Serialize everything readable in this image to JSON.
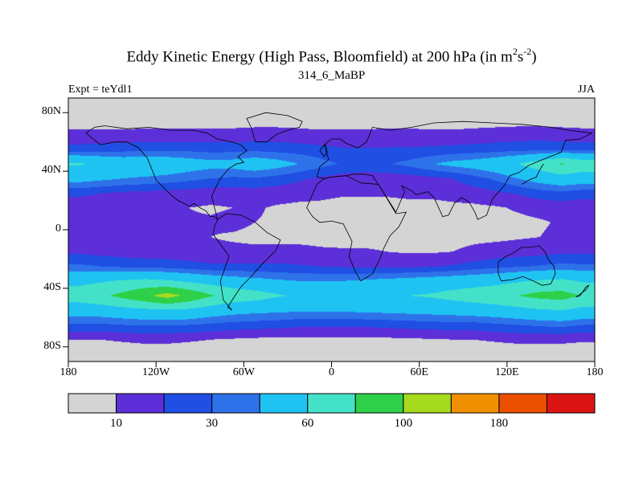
{
  "header": {
    "title_pre": "Eddy Kinetic Energy (High Pass, Bloomfield) at 200 hPa (in m",
    "title_sup1": "2",
    "title_mid": "s",
    "title_sup2": "-2",
    "title_post": ")",
    "subtitle": "314_6_MaBP",
    "experiment": "Expt = teYdl1",
    "season": "JJA"
  },
  "axes": {
    "lat_ticks": [
      {
        "label": "80N",
        "lat": 80
      },
      {
        "label": "40N",
        "lat": 40
      },
      {
        "label": "0",
        "lat": 0
      },
      {
        "label": "40S",
        "lat": -40
      },
      {
        "label": "80S",
        "lat": -80
      }
    ],
    "lon_ticks": [
      {
        "label": "180",
        "lon": -180
      },
      {
        "label": "120W",
        "lon": -120
      },
      {
        "label": "60W",
        "lon": -60
      },
      {
        "label": "0",
        "lon": 0
      },
      {
        "label": "60E",
        "lon": 60
      },
      {
        "label": "120E",
        "lon": 120
      },
      {
        "label": "180",
        "lon": 180
      }
    ]
  },
  "colorbar": {
    "labels": [
      {
        "text": "10",
        "boundary_index": 0
      },
      {
        "text": "30",
        "boundary_index": 2
      },
      {
        "text": "60",
        "boundary_index": 4
      },
      {
        "text": "100",
        "boundary_index": 6
      },
      {
        "text": "180",
        "boundary_index": 8
      }
    ]
  },
  "chart_data": {
    "type": "heatmap",
    "title": "Eddy Kinetic Energy (High Pass, Bloomfield) at 200 hPa (in m2 s-2)",
    "subtitle": "314_6_MaBP",
    "experiment": "teYdl1",
    "season": "JJA",
    "units": "m2 s-2",
    "levels": [
      10,
      20,
      30,
      40,
      60,
      80,
      100,
      140,
      180,
      220
    ],
    "palette": [
      "#d4d4d4",
      "#5c2fd8",
      "#1f4fe3",
      "#2e72ea",
      "#1fc3f2",
      "#43e2c8",
      "#2fd049",
      "#a6da1e",
      "#f09000",
      "#ea4f00",
      "#dc1414"
    ],
    "lon_range": [
      -180,
      180
    ],
    "lat_range": [
      -90,
      90
    ],
    "lon_centers": [
      -172.5,
      -157.5,
      -142.5,
      -127.5,
      -112.5,
      -97.5,
      -82.5,
      -67.5,
      -52.5,
      -37.5,
      -22.5,
      -7.5,
      7.5,
      22.5,
      37.5,
      52.5,
      67.5,
      82.5,
      97.5,
      112.5,
      127.5,
      142.5,
      157.5,
      172.5
    ],
    "lat_centers": [
      85,
      75,
      65,
      55,
      45,
      35,
      25,
      15,
      5,
      -5,
      -15,
      -25,
      -35,
      -45,
      -55,
      -65,
      -75,
      -85
    ],
    "values": [
      [
        5,
        5,
        5,
        5,
        5,
        5,
        5,
        5,
        5,
        5,
        5,
        5,
        5,
        5,
        5,
        5,
        5,
        5,
        5,
        5,
        5,
        5,
        5,
        5
      ],
      [
        6,
        6,
        6,
        6,
        6,
        6,
        6,
        6,
        6,
        6,
        6,
        6,
        6,
        6,
        6,
        6,
        6,
        6,
        6,
        6,
        6,
        6,
        6,
        6
      ],
      [
        12,
        12,
        12,
        13,
        13,
        13,
        13,
        13,
        14,
        14,
        13,
        12,
        12,
        12,
        13,
        13,
        12,
        12,
        13,
        14,
        15,
        15,
        14,
        13
      ],
      [
        24,
        25,
        26,
        27,
        27,
        27,
        26,
        26,
        27,
        26,
        25,
        23,
        21,
        21,
        21,
        21,
        22,
        23,
        24,
        25,
        26,
        27,
        27,
        26
      ],
      [
        62,
        56,
        52,
        54,
        52,
        48,
        45,
        46,
        50,
        46,
        40,
        34,
        29,
        27,
        29,
        33,
        39,
        44,
        47,
        52,
        60,
        70,
        82,
        72
      ],
      [
        46,
        43,
        40,
        38,
        36,
        33,
        30,
        28,
        29,
        26,
        22,
        18,
        15,
        14,
        14,
        15,
        17,
        20,
        26,
        32,
        40,
        47,
        52,
        49
      ],
      [
        22,
        20,
        18,
        17,
        16,
        15,
        14,
        14,
        15,
        14,
        13,
        12,
        11,
        11,
        11,
        12,
        12,
        13,
        15,
        18,
        21,
        25,
        27,
        24
      ],
      [
        14,
        13,
        12,
        12,
        11,
        10,
        9,
        10,
        11,
        9,
        8,
        8,
        7,
        7,
        7,
        7,
        7,
        8,
        8,
        9,
        11,
        13,
        14,
        14
      ],
      [
        12,
        12,
        12,
        12,
        11,
        11,
        11,
        12,
        10,
        9,
        8,
        8,
        7,
        7,
        7,
        7,
        7,
        7,
        7,
        8,
        8,
        9,
        11,
        12
      ],
      [
        13,
        12,
        12,
        12,
        11,
        10,
        10,
        9,
        8,
        8,
        8,
        8,
        7,
        7,
        7,
        7,
        7,
        7,
        8,
        8,
        9,
        10,
        12,
        13
      ],
      [
        18,
        16,
        15,
        14,
        14,
        13,
        12,
        12,
        12,
        12,
        12,
        11,
        11,
        11,
        10,
        9,
        9,
        10,
        12,
        14,
        15,
        16,
        18,
        18
      ],
      [
        32,
        30,
        28,
        27,
        26,
        24,
        22,
        22,
        22,
        22,
        21,
        20,
        19,
        18,
        18,
        18,
        19,
        21,
        24,
        27,
        29,
        31,
        33,
        32
      ],
      [
        55,
        58,
        62,
        65,
        62,
        57,
        52,
        48,
        45,
        42,
        40,
        40,
        40,
        42,
        44,
        46,
        48,
        50,
        52,
        54,
        58,
        62,
        64,
        58
      ],
      [
        70,
        76,
        86,
        96,
        108,
        96,
        82,
        72,
        68,
        62,
        58,
        56,
        55,
        56,
        58,
        60,
        62,
        66,
        70,
        74,
        80,
        86,
        88,
        78
      ],
      [
        48,
        50,
        53,
        56,
        58,
        56,
        50,
        46,
        44,
        43,
        42,
        42,
        42,
        43,
        44,
        45,
        46,
        47,
        49,
        51,
        54,
        58,
        60,
        54
      ],
      [
        28,
        28,
        30,
        31,
        31,
        30,
        28,
        26,
        25,
        24,
        22,
        22,
        22,
        22,
        23,
        24,
        25,
        26,
        26,
        28,
        30,
        32,
        33,
        30
      ],
      [
        10,
        10,
        11,
        12,
        12,
        11,
        10,
        9,
        8,
        8,
        8,
        8,
        8,
        8,
        8,
        9,
        9,
        10,
        10,
        11,
        12,
        12,
        12,
        11
      ],
      [
        5,
        5,
        5,
        5,
        5,
        5,
        5,
        5,
        5,
        5,
        5,
        5,
        5,
        5,
        5,
        5,
        5,
        5,
        5,
        5,
        5,
        5,
        5,
        5
      ]
    ],
    "coastlines": [
      [
        [
          -168,
          66
        ],
        [
          -158,
          58
        ],
        [
          -148,
          60
        ],
        [
          -140,
          60
        ],
        [
          -132,
          56
        ],
        [
          -126,
          49
        ],
        [
          -120,
          34
        ],
        [
          -110,
          24
        ],
        [
          -105,
          20
        ],
        [
          -97,
          16
        ],
        [
          -94,
          18
        ],
        [
          -90,
          15
        ],
        [
          -86,
          13
        ],
        [
          -83,
          9
        ],
        [
          -80,
          9
        ],
        [
          -78,
          7
        ],
        [
          -82,
          23
        ],
        [
          -80,
          27
        ],
        [
          -76,
          35
        ],
        [
          -70,
          42
        ],
        [
          -65,
          45
        ],
        [
          -60,
          46
        ],
        [
          -64,
          50
        ],
        [
          -58,
          54
        ],
        [
          -62,
          58
        ],
        [
          -68,
          60
        ],
        [
          -78,
          62
        ],
        [
          -85,
          66
        ],
        [
          -95,
          68
        ],
        [
          -110,
          68
        ],
        [
          -125,
          70
        ],
        [
          -140,
          69
        ],
        [
          -155,
          71
        ],
        [
          -162,
          70
        ],
        [
          -168,
          66
        ]
      ],
      [
        [
          -52,
          60
        ],
        [
          -44,
          60
        ],
        [
          -38,
          65
        ],
        [
          -30,
          68
        ],
        [
          -22,
          70
        ],
        [
          -20,
          74
        ],
        [
          -30,
          78
        ],
        [
          -45,
          80
        ],
        [
          -58,
          76
        ],
        [
          -55,
          70
        ],
        [
          -52,
          60
        ]
      ],
      [
        [
          -78,
          7
        ],
        [
          -72,
          11
        ],
        [
          -62,
          10
        ],
        [
          -52,
          5
        ],
        [
          -44,
          -2
        ],
        [
          -35,
          -7
        ],
        [
          -38,
          -14
        ],
        [
          -48,
          -24
        ],
        [
          -56,
          -33
        ],
        [
          -62,
          -39
        ],
        [
          -66,
          -45
        ],
        [
          -71,
          -53
        ],
        [
          -68,
          -55
        ],
        [
          -74,
          -48
        ],
        [
          -76,
          -35
        ],
        [
          -70,
          -18
        ],
        [
          -76,
          -10
        ],
        [
          -81,
          -3
        ],
        [
          -80,
          2
        ],
        [
          -78,
          7
        ]
      ],
      [
        [
          -17,
          15
        ],
        [
          -10,
          31
        ],
        [
          -5,
          35
        ],
        [
          0,
          36
        ],
        [
          10,
          37
        ],
        [
          20,
          32
        ],
        [
          32,
          31
        ],
        [
          34,
          28
        ],
        [
          44,
          11
        ],
        [
          51,
          12
        ],
        [
          46,
          2
        ],
        [
          40,
          -4
        ],
        [
          36,
          -12
        ],
        [
          33,
          -20
        ],
        [
          28,
          -30
        ],
        [
          20,
          -35
        ],
        [
          16,
          -28
        ],
        [
          12,
          -18
        ],
        [
          14,
          -8
        ],
        [
          8,
          4
        ],
        [
          0,
          6
        ],
        [
          -8,
          5
        ],
        [
          -13,
          9
        ],
        [
          -17,
          15
        ]
      ],
      [
        [
          -10,
          36
        ],
        [
          -8,
          43
        ],
        [
          -2,
          48
        ],
        [
          -5,
          58
        ],
        [
          0,
          62
        ],
        [
          6,
          62
        ],
        [
          10,
          59
        ],
        [
          18,
          56
        ],
        [
          24,
          60
        ],
        [
          28,
          70
        ],
        [
          40,
          68
        ],
        [
          55,
          70
        ],
        [
          70,
          73
        ],
        [
          90,
          74
        ],
        [
          110,
          73
        ],
        [
          130,
          72
        ],
        [
          150,
          70
        ],
        [
          162,
          68
        ],
        [
          178,
          66
        ],
        [
          170,
          62
        ],
        [
          160,
          61
        ],
        [
          157,
          53
        ],
        [
          142,
          47
        ],
        [
          135,
          44
        ],
        [
          128,
          39
        ],
        [
          122,
          37
        ],
        [
          118,
          30
        ],
        [
          110,
          21
        ],
        [
          106,
          10
        ],
        [
          100,
          7
        ],
        [
          98,
          12
        ],
        [
          94,
          19
        ],
        [
          89,
          22
        ],
        [
          84,
          18
        ],
        [
          80,
          10
        ],
        [
          76,
          9
        ],
        [
          70,
          22
        ],
        [
          66,
          26
        ],
        [
          58,
          24
        ],
        [
          54,
          27
        ],
        [
          48,
          30
        ],
        [
          50,
          26
        ],
        [
          44,
          12
        ],
        [
          34,
          28
        ],
        [
          32,
          31
        ],
        [
          28,
          37
        ],
        [
          22,
          38
        ],
        [
          15,
          38
        ],
        [
          10,
          37
        ],
        [
          0,
          36
        ],
        [
          -5,
          35
        ],
        [
          -10,
          36
        ]
      ],
      [
        [
          114,
          -22
        ],
        [
          118,
          -19
        ],
        [
          124,
          -16
        ],
        [
          130,
          -12
        ],
        [
          136,
          -12
        ],
        [
          142,
          -11
        ],
        [
          146,
          -15
        ],
        [
          148,
          -20
        ],
        [
          152,
          -25
        ],
        [
          153,
          -30
        ],
        [
          150,
          -37
        ],
        [
          144,
          -38
        ],
        [
          138,
          -35
        ],
        [
          131,
          -32
        ],
        [
          124,
          -34
        ],
        [
          116,
          -35
        ],
        [
          114,
          -30
        ],
        [
          114,
          -22
        ]
      ],
      [
        [
          -5,
          50
        ],
        [
          -3,
          53
        ],
        [
          -4,
          58
        ],
        [
          -6,
          57
        ],
        [
          -8,
          54
        ],
        [
          -5,
          50
        ]
      ],
      [
        [
          130,
          31
        ],
        [
          135,
          34
        ],
        [
          140,
          36
        ],
        [
          143,
          42
        ],
        [
          145,
          45
        ]
      ],
      [
        [
          167,
          -46
        ],
        [
          170,
          -44
        ],
        [
          174,
          -41
        ],
        [
          176,
          -38
        ],
        [
          174,
          -39
        ],
        [
          170,
          -45
        ],
        [
          167,
          -46
        ]
      ]
    ]
  }
}
